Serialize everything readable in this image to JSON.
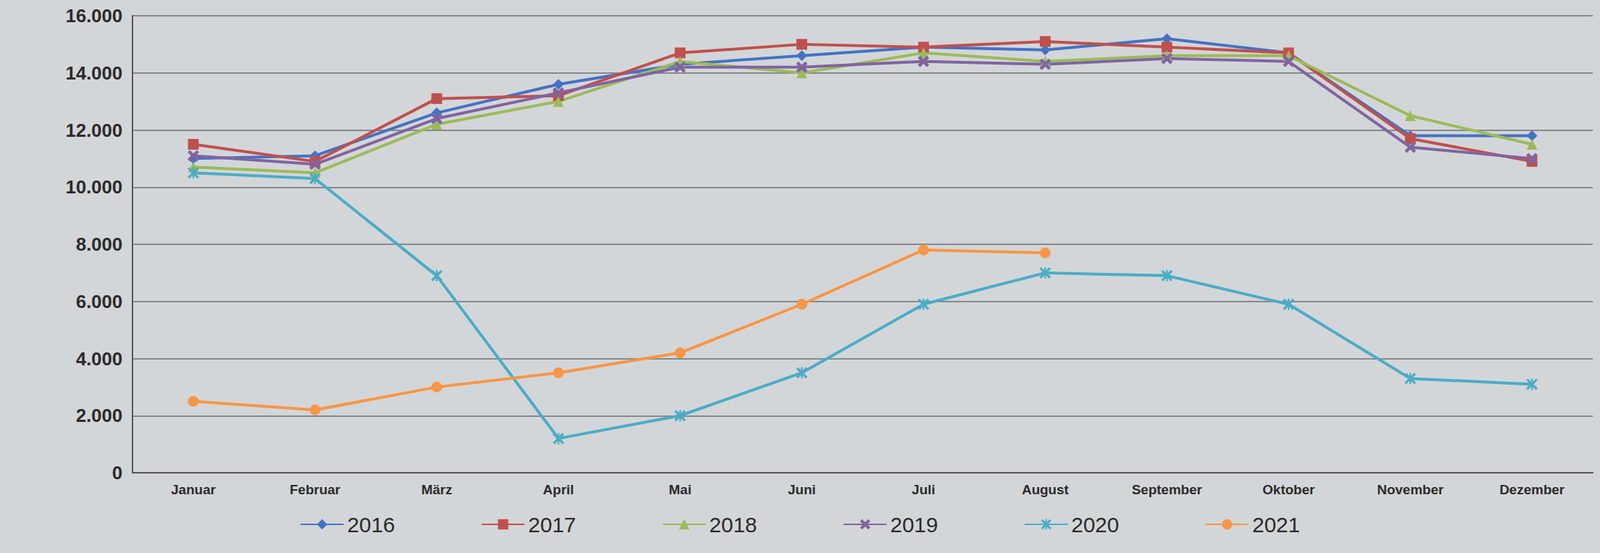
{
  "chart_data": {
    "type": "line",
    "categories": [
      "Januar",
      "Februar",
      "März",
      "April",
      "Mai",
      "Juni",
      "Juli",
      "August",
      "September",
      "Oktober",
      "November",
      "Dezember"
    ],
    "series": [
      {
        "name": "2016",
        "color": "#4472c4",
        "marker": "diamond",
        "values": [
          11000,
          11100,
          12600,
          13600,
          14300,
          14600,
          14900,
          14800,
          15200,
          14700,
          11800,
          11800
        ]
      },
      {
        "name": "2017",
        "color": "#c0504d",
        "marker": "square",
        "values": [
          11500,
          10900,
          13100,
          13200,
          14700,
          15000,
          14900,
          15100,
          14900,
          14700,
          11700,
          10900
        ]
      },
      {
        "name": "2018",
        "color": "#9bbb59",
        "marker": "triangle",
        "values": [
          10700,
          10500,
          12200,
          13000,
          14400,
          14000,
          14700,
          14400,
          14600,
          14600,
          12500,
          11500
        ]
      },
      {
        "name": "2019",
        "color": "#8064a2",
        "marker": "x",
        "values": [
          11100,
          10800,
          12400,
          13300,
          14200,
          14200,
          14400,
          14300,
          14500,
          14400,
          11400,
          11000
        ]
      },
      {
        "name": "2020",
        "color": "#4bacc6",
        "marker": "star",
        "values": [
          10500,
          10300,
          6900,
          1200,
          2000,
          3500,
          5900,
          7000,
          6900,
          5900,
          3300,
          3100
        ]
      },
      {
        "name": "2021",
        "color": "#f79646",
        "marker": "circle",
        "values": [
          2500,
          2200,
          3000,
          3500,
          4200,
          5900,
          7800,
          7700,
          null,
          null,
          null,
          null
        ]
      }
    ],
    "ylim": [
      0,
      16000
    ],
    "yticks": [
      0,
      {
        "value": 2000,
        "label": "2.000"
      },
      {
        "value": 4000,
        "label": "4.000"
      },
      {
        "value": 6000,
        "label": "6.000"
      },
      {
        "value": 8000,
        "label": "8.000"
      },
      {
        "value": 10000,
        "label": "10.000"
      },
      {
        "value": 12000,
        "label": "12.000"
      },
      {
        "value": 14000,
        "label": "14.000"
      },
      {
        "value": 16000,
        "label": "16.000"
      }
    ],
    "grid": true,
    "legend": "bottom"
  }
}
